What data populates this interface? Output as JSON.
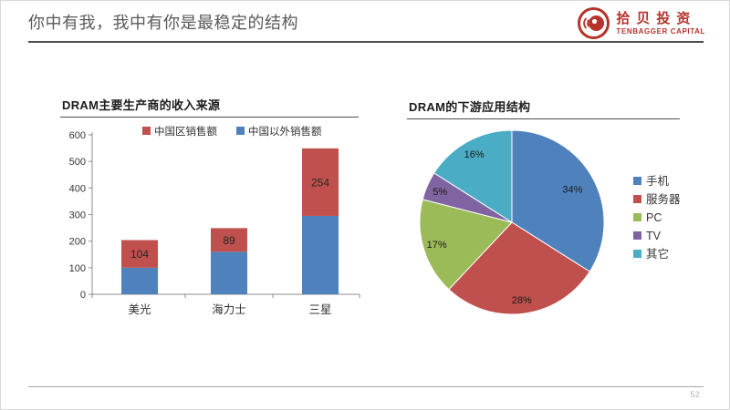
{
  "header": {
    "title": "你中有我，我中有你是最稳定的结构",
    "logo": {
      "name_cn": "拾贝投资",
      "name_en": "TENBAGGER CAPITAL",
      "brand_color": "#b5332b"
    }
  },
  "footer": {
    "page_number": "52"
  },
  "chart_data": [
    {
      "type": "bar",
      "stacked": true,
      "title": "DRAM主要生产商的收入来源",
      "categories": [
        "美光",
        "海力士",
        "三星"
      ],
      "series": [
        {
          "name": "中国以外销售额",
          "color": "#4F81BD",
          "values": [
            100,
            160,
            295
          ]
        },
        {
          "name": "中国区销售额",
          "color": "#C0504D",
          "values": [
            104,
            89,
            254
          ],
          "data_labels": [
            "104",
            "89",
            "254"
          ]
        }
      ],
      "legend": [
        "中国区销售额",
        "中国以外销售额"
      ],
      "legend_position": "top",
      "ylabel": "",
      "xlabel": "",
      "ylim": [
        0,
        600
      ],
      "ytick_step": 100,
      "grid": false,
      "axis_color": "#8c8c8c",
      "tick_label_color": "#333333",
      "data_label_color": "#262626"
    },
    {
      "type": "pie",
      "title": "DRAM的下游应用结构",
      "labels": [
        "手机",
        "服务器",
        "PC",
        "TV",
        "其它"
      ],
      "values": [
        34,
        28,
        17,
        5,
        16
      ],
      "data_labels": [
        "34%",
        "28%",
        "17%",
        "5%",
        "16%"
      ],
      "colors": [
        "#4F81BD",
        "#C0504D",
        "#9BBB59",
        "#8064A2",
        "#4BACC6"
      ],
      "legend_position": "right",
      "start_angle": 0,
      "direction": "clockwise",
      "label_color": "#1a1a1a"
    }
  ]
}
